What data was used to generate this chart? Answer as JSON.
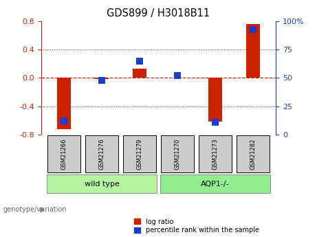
{
  "title": "GDS899 / H3018B11",
  "samples": [
    "GSM21266",
    "GSM21276",
    "GSM21279",
    "GSM21270",
    "GSM21273",
    "GSM21282"
  ],
  "log_ratio": [
    -0.72,
    -0.02,
    0.13,
    0.0,
    -0.62,
    0.76
  ],
  "percentile_rank": [
    12,
    48,
    65,
    52,
    11,
    93
  ],
  "groups": [
    {
      "label": "wild type",
      "indices": [
        0,
        1,
        2
      ],
      "color": "#b3f5a0"
    },
    {
      "label": "AQP1-/-",
      "indices": [
        3,
        4,
        5
      ],
      "color": "#90ee90"
    }
  ],
  "ylim_left": [
    -0.8,
    0.8
  ],
  "ylim_right": [
    0,
    100
  ],
  "left_ticks": [
    -0.8,
    -0.4,
    0.0,
    0.4,
    0.8
  ],
  "right_ticks": [
    0,
    25,
    50,
    75,
    100
  ],
  "bar_color": "#cc2200",
  "dot_color": "#1a3fcf",
  "zero_line_color": "#cc2200",
  "grid_color": "#333333",
  "sample_box_color": "#cccccc",
  "genotype_label": "genotype/variation",
  "legend_log_ratio": "log ratio",
  "legend_percentile": "percentile rank within the sample",
  "bar_width": 0.35,
  "dot_size": 55
}
